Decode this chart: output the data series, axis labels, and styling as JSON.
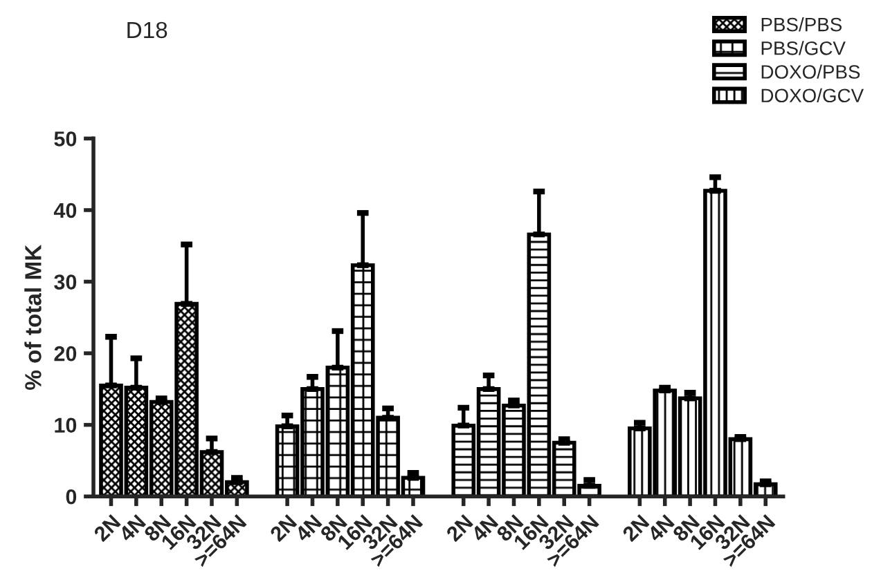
{
  "chart_data": {
    "type": "bar",
    "title": "D18",
    "ylabel": "% of total MK",
    "categories": [
      "2N",
      "4N",
      "8N",
      "16N",
      "32N",
      ">=64N",
      null,
      "2N",
      "4N",
      "8N",
      "16N",
      "32N",
      ">=64N",
      null,
      "2N",
      "4N",
      "8N",
      "16N",
      "32N",
      ">=64N",
      null,
      "2N",
      "4N",
      "8N",
      "16N",
      "32N",
      ">=64N"
    ],
    "series": [
      {
        "name": "PBS/PBS",
        "color": "#000000",
        "values": [
          15.5,
          15.2,
          13.2,
          26.9,
          6.2,
          2.0,
          null,
          null,
          null,
          null,
          null,
          null,
          null,
          null,
          null,
          null,
          null,
          null,
          null,
          null,
          null,
          null,
          null,
          null,
          null,
          null,
          null
        ],
        "errors": [
          [
            15.5,
            22.3
          ],
          [
            15.2,
            19.3
          ],
          [
            13.2,
            13.7
          ],
          [
            26.9,
            35.2
          ],
          [
            6.2,
            8.1
          ],
          [
            2.0,
            2.6
          ],
          null,
          null,
          null,
          null,
          null,
          null,
          null,
          null,
          null,
          null,
          null,
          null,
          null,
          null,
          null,
          null,
          null,
          null,
          null,
          null,
          null
        ]
      },
      {
        "name": "PBS/GCV",
        "color": "#000000",
        "values": [
          null,
          null,
          null,
          null,
          null,
          null,
          null,
          9.8,
          15.0,
          18.0,
          32.3,
          11.0,
          2.6,
          null,
          null,
          null,
          null,
          null,
          null,
          null,
          null,
          null,
          null,
          null,
          null,
          null,
          null
        ],
        "errors": [
          null,
          null,
          null,
          null,
          null,
          null,
          null,
          [
            9.8,
            11.3
          ],
          [
            15.0,
            16.7
          ],
          [
            18.0,
            23.1
          ],
          [
            32.3,
            39.6
          ],
          [
            11.0,
            12.3
          ],
          [
            2.6,
            3.3
          ],
          null,
          null,
          null,
          null,
          null,
          null,
          null,
          null,
          null,
          null,
          null,
          null,
          null,
          null
        ]
      },
      {
        "name": "DOXO/PBS",
        "color": "#000000",
        "values": [
          null,
          null,
          null,
          null,
          null,
          null,
          null,
          null,
          null,
          null,
          null,
          null,
          null,
          null,
          9.9,
          15.0,
          12.7,
          36.6,
          7.5,
          1.5,
          null,
          null,
          null,
          null,
          null,
          null,
          null
        ],
        "errors": [
          null,
          null,
          null,
          null,
          null,
          null,
          null,
          null,
          null,
          null,
          null,
          null,
          null,
          null,
          [
            9.9,
            12.4
          ],
          [
            15.0,
            16.9
          ],
          [
            12.7,
            13.4
          ],
          [
            36.6,
            42.6
          ],
          [
            7.5,
            8.0
          ],
          [
            1.5,
            2.3
          ],
          null,
          null,
          null,
          null,
          null,
          null,
          null
        ]
      },
      {
        "name": "DOXO/GCV",
        "color": "#000000",
        "values": [
          null,
          null,
          null,
          null,
          null,
          null,
          null,
          null,
          null,
          null,
          null,
          null,
          null,
          null,
          null,
          null,
          null,
          null,
          null,
          null,
          null,
          9.5,
          14.8,
          13.7,
          42.7,
          8.0,
          1.7
        ],
        "errors": [
          null,
          null,
          null,
          null,
          null,
          null,
          null,
          null,
          null,
          null,
          null,
          null,
          null,
          null,
          null,
          null,
          null,
          null,
          null,
          null,
          null,
          [
            9.5,
            10.3
          ],
          [
            14.8,
            15.2
          ],
          [
            13.7,
            14.5
          ],
          [
            42.7,
            44.6
          ],
          [
            8.0,
            8.3
          ],
          [
            1.7,
            2.1
          ]
        ]
      }
    ],
    "ylim": [
      0,
      50
    ],
    "yticks": [
      0,
      10,
      20,
      30,
      40,
      50
    ],
    "grid": false,
    "legend": "top right"
  }
}
